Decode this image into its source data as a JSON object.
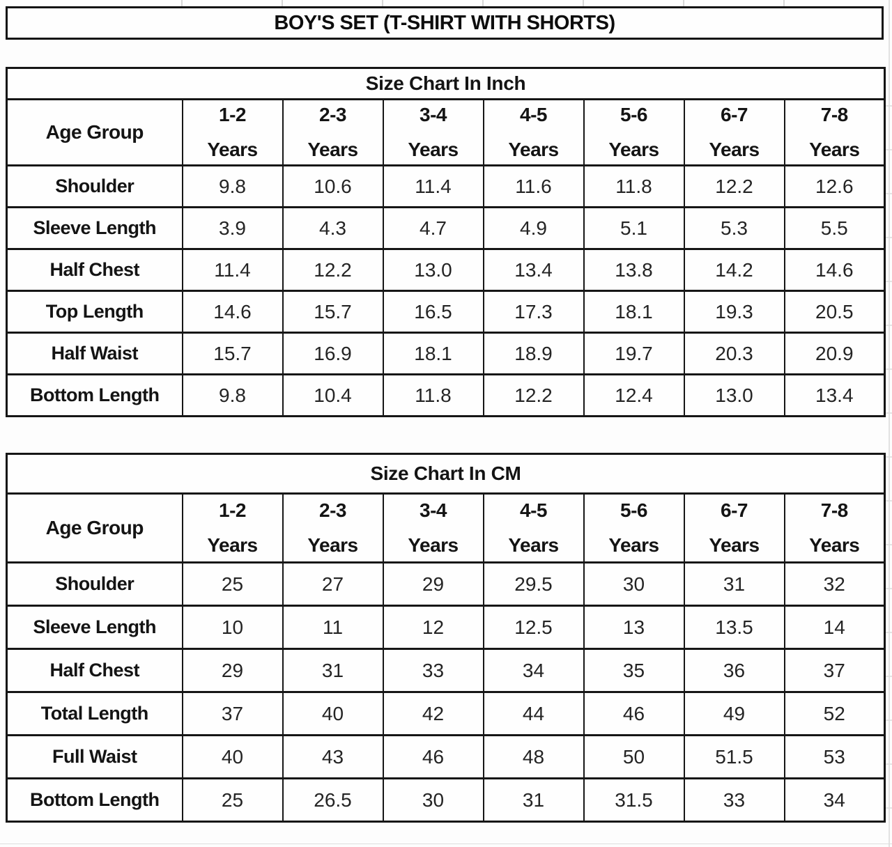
{
  "title": "BOY'S SET (T-SHIRT WITH SHORTS)",
  "colors": {
    "border": "#161616",
    "text": "#141414",
    "background": "#fdfdfd",
    "gridline_faint": "#dddddd"
  },
  "tables": [
    {
      "heading": "Size Chart In Inch",
      "corner_label": "Age Group",
      "age_groups": [
        {
          "range": "1-2",
          "unit": "Years"
        },
        {
          "range": "2-3",
          "unit": "Years"
        },
        {
          "range": "3-4",
          "unit": "Years"
        },
        {
          "range": "4-5",
          "unit": "Years"
        },
        {
          "range": "5-6",
          "unit": "Years"
        },
        {
          "range": "6-7",
          "unit": "Years"
        },
        {
          "range": "7-8",
          "unit": "Years"
        }
      ],
      "rows": [
        {
          "label": "Shoulder",
          "values": [
            "9.8",
            "10.6",
            "11.4",
            "11.6",
            "11.8",
            "12.2",
            "12.6"
          ]
        },
        {
          "label": "Sleeve Length",
          "values": [
            "3.9",
            "4.3",
            "4.7",
            "4.9",
            "5.1",
            "5.3",
            "5.5"
          ]
        },
        {
          "label": "Half Chest",
          "values": [
            "11.4",
            "12.2",
            "13.0",
            "13.4",
            "13.8",
            "14.2",
            "14.6"
          ]
        },
        {
          "label": "Top Length",
          "values": [
            "14.6",
            "15.7",
            "16.5",
            "17.3",
            "18.1",
            "19.3",
            "20.5"
          ]
        },
        {
          "label": "Half Waist",
          "values": [
            "15.7",
            "16.9",
            "18.1",
            "18.9",
            "19.7",
            "20.3",
            "20.9"
          ]
        },
        {
          "label": "Bottom Length",
          "values": [
            "9.8",
            "10.4",
            "11.8",
            "12.2",
            "12.4",
            "13.0",
            "13.4"
          ]
        }
      ]
    },
    {
      "heading": "Size Chart In CM",
      "corner_label": "Age Group",
      "age_groups": [
        {
          "range": "1-2",
          "unit": "Years"
        },
        {
          "range": "2-3",
          "unit": "Years"
        },
        {
          "range": "3-4",
          "unit": "Years"
        },
        {
          "range": "4-5",
          "unit": "Years"
        },
        {
          "range": "5-6",
          "unit": "Years"
        },
        {
          "range": "6-7",
          "unit": "Years"
        },
        {
          "range": "7-8",
          "unit": "Years"
        }
      ],
      "rows": [
        {
          "label": "Shoulder",
          "values": [
            "25",
            "27",
            "29",
            "29.5",
            "30",
            "31",
            "32"
          ]
        },
        {
          "label": "Sleeve Length",
          "values": [
            "10",
            "11",
            "12",
            "12.5",
            "13",
            "13.5",
            "14"
          ]
        },
        {
          "label": "Half Chest",
          "values": [
            "29",
            "31",
            "33",
            "34",
            "35",
            "36",
            "37"
          ]
        },
        {
          "label": "Total Length",
          "values": [
            "37",
            "40",
            "42",
            "44",
            "46",
            "49",
            "52"
          ]
        },
        {
          "label": "Full Waist",
          "values": [
            "40",
            "43",
            "46",
            "48",
            "50",
            "51.5",
            "53"
          ]
        },
        {
          "label": "Bottom Length",
          "values": [
            "25",
            "26.5",
            "30",
            "31",
            "31.5",
            "33",
            "34"
          ]
        }
      ]
    }
  ]
}
